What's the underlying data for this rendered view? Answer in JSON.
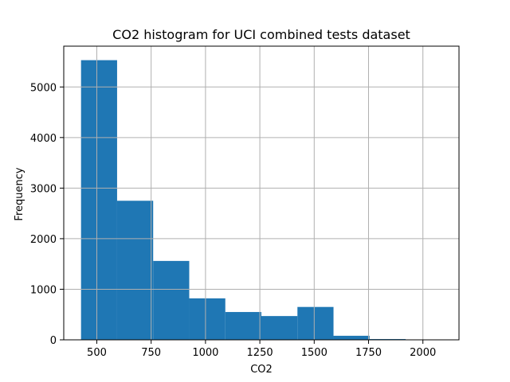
{
  "chart_data": {
    "type": "bar",
    "title": "CO2 histogram for UCI combined tests dataset",
    "xlabel": "CO2",
    "ylabel": "Frequency",
    "bin_edges": [
      427.5,
      593.4,
      759.3,
      925.2,
      1091.1,
      1257.0,
      1422.9,
      1588.8,
      1754.7,
      1920.6,
      2086.5
    ],
    "values": [
      5530,
      2750,
      1560,
      820,
      550,
      470,
      650,
      80,
      15,
      5
    ],
    "xlim": [
      348,
      2166
    ],
    "ylim": [
      0,
      5807
    ],
    "xticks": [
      500,
      750,
      1000,
      1250,
      1500,
      1750,
      2000
    ],
    "yticks": [
      0,
      1000,
      2000,
      3000,
      4000,
      5000
    ],
    "grid": true,
    "colors": {
      "bar": "#1f77b4",
      "grid": "#b0b0b0",
      "axis": "#000000"
    }
  }
}
